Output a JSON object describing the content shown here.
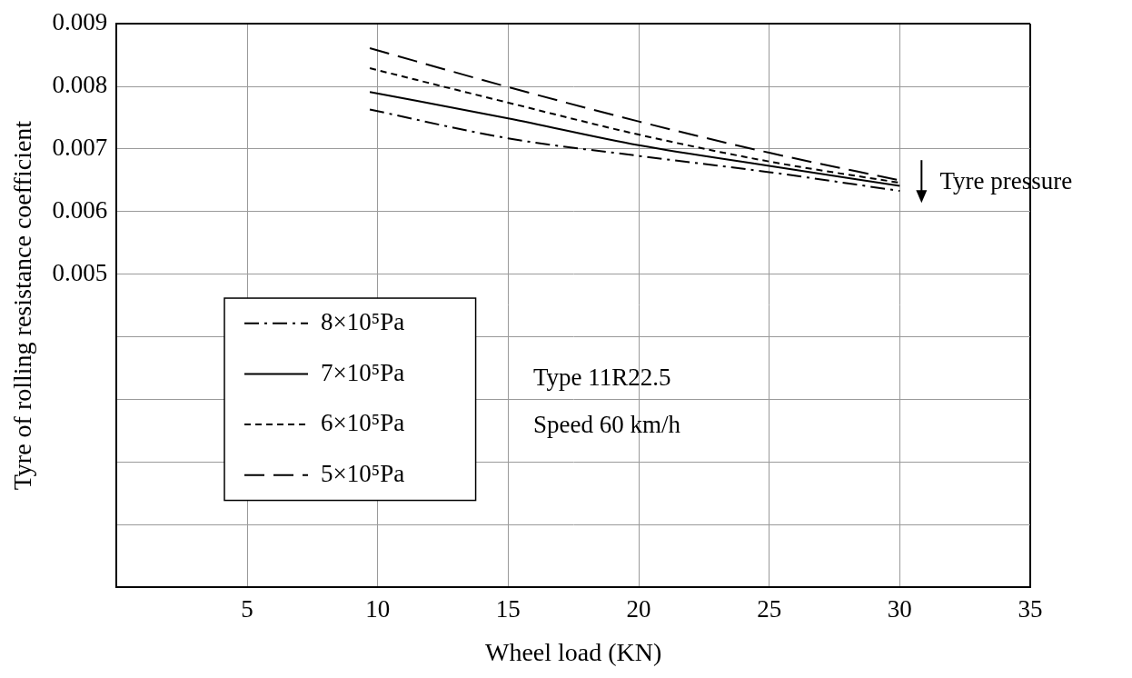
{
  "chart_data": {
    "type": "line",
    "x_label": "Wheel load (KN)",
    "y_label": "Tyre of rolling resistance coefficient",
    "x": [
      9.7,
      15,
      20,
      25,
      30
    ],
    "series": [
      {
        "name": "8×10⁵Pa",
        "color": "#000000",
        "line_style": "dashdot",
        "values": [
          0.00763,
          0.00717,
          0.00689,
          0.00663,
          0.00633
        ]
      },
      {
        "name": "7×10⁵Pa",
        "color": "#000000",
        "line_style": "solid",
        "values": [
          0.00791,
          0.00749,
          0.00706,
          0.00673,
          0.00641
        ]
      },
      {
        "name": "6×10⁵Pa",
        "color": "#000000",
        "line_style": "dotted",
        "values": [
          0.00829,
          0.00774,
          0.00723,
          0.0068,
          0.00646
        ]
      },
      {
        "name": "5×10⁵Pa",
        "color": "#000000",
        "line_style": "dashed",
        "values": [
          0.00861,
          0.00799,
          0.00744,
          0.00694,
          0.0065
        ]
      }
    ],
    "xlim": [
      0,
      35
    ],
    "xticks": [
      5,
      10,
      15,
      20,
      25,
      30,
      35
    ],
    "ylim": [
      0,
      0.009
    ],
    "yticks": [
      0.005,
      0.006,
      0.007,
      0.008,
      0.009
    ],
    "grid": true,
    "legend": "left",
    "annotations": [
      "Tyre pressure",
      "Type 11R22.5",
      "Speed 60 km/h"
    ]
  }
}
